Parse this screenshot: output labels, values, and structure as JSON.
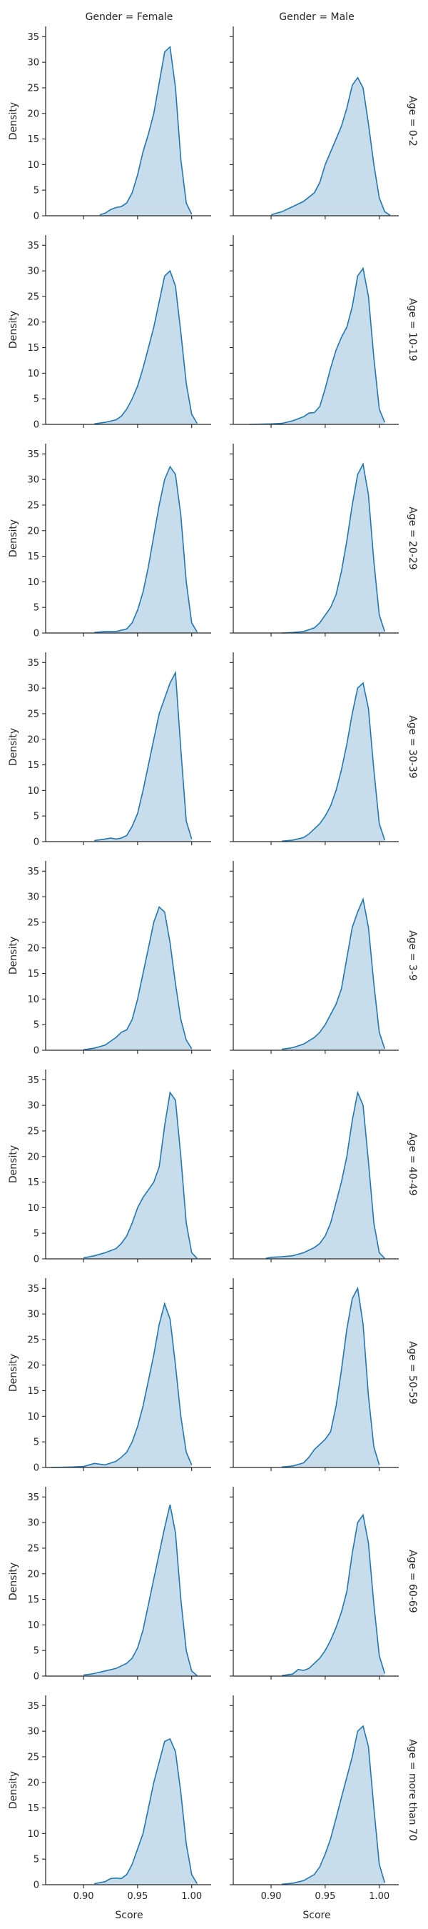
{
  "chart_data": {
    "type": "area",
    "facet_grid": {
      "col_var": "Gender",
      "row_var": "Age"
    },
    "xlabel": "Score",
    "ylabel": "Density",
    "xlim": [
      0.865,
      1.018
    ],
    "ylim": [
      0,
      37
    ],
    "xticks": [
      0.9,
      0.95,
      1.0
    ],
    "xtick_labels": [
      "0.90",
      "0.95",
      "1.00"
    ],
    "yticks": [
      0,
      5,
      10,
      15,
      20,
      25,
      30,
      35
    ],
    "ytick_labels": [
      "0",
      "5",
      "10",
      "15",
      "20",
      "25",
      "30",
      "35"
    ],
    "col_titles": [
      "Gender = Female",
      "Gender = Male"
    ],
    "row_titles": [
      "Age = 0-2",
      "Age = 10-19",
      "Age = 20-29",
      "Age = 30-39",
      "Age = 3-9",
      "Age = 40-49",
      "Age = 50-59",
      "Age = 60-69",
      "Age = more than 70"
    ],
    "panels": [
      {
        "row": 0,
        "col": 0,
        "x": [
          0.915,
          0.92,
          0.925,
          0.93,
          0.935,
          0.94,
          0.945,
          0.95,
          0.955,
          0.96,
          0.965,
          0.97,
          0.975,
          0.98,
          0.985,
          0.99,
          0.995,
          1.0
        ],
        "y": [
          0.2,
          0.5,
          1.2,
          1.6,
          1.8,
          2.5,
          4.5,
          8,
          12.5,
          16,
          20,
          26,
          32,
          33,
          25,
          11,
          2.5,
          0.3
        ]
      },
      {
        "row": 0,
        "col": 1,
        "x": [
          0.9,
          0.91,
          0.92,
          0.93,
          0.94,
          0.945,
          0.95,
          0.955,
          0.96,
          0.965,
          0.97,
          0.975,
          0.98,
          0.985,
          0.99,
          0.995,
          1.0,
          1.005,
          1.01
        ],
        "y": [
          0.2,
          0.8,
          1.8,
          2.8,
          4.5,
          6.5,
          10,
          12.5,
          15,
          17.5,
          21,
          25.5,
          27,
          25,
          18,
          10,
          3.5,
          0.8,
          0.1
        ]
      },
      {
        "row": 1,
        "col": 0,
        "x": [
          0.91,
          0.92,
          0.93,
          0.935,
          0.94,
          0.945,
          0.95,
          0.955,
          0.96,
          0.965,
          0.97,
          0.975,
          0.98,
          0.985,
          0.99,
          0.995,
          1.0,
          1.005
        ],
        "y": [
          0.1,
          0.4,
          0.9,
          1.6,
          3,
          5,
          7.5,
          11,
          15,
          19,
          24,
          29,
          30,
          27,
          18,
          8,
          2,
          0.2
        ]
      },
      {
        "row": 1,
        "col": 1,
        "x": [
          0.88,
          0.9,
          0.91,
          0.92,
          0.93,
          0.935,
          0.94,
          0.945,
          0.95,
          0.955,
          0.96,
          0.965,
          0.97,
          0.975,
          0.98,
          0.985,
          0.99,
          0.995,
          1.0,
          1.005
        ],
        "y": [
          0,
          0.1,
          0.2,
          0.7,
          1.5,
          2.2,
          2.3,
          3.5,
          7,
          11,
          14.5,
          17,
          19,
          23,
          29,
          30.5,
          25,
          13,
          3,
          0.4
        ]
      },
      {
        "row": 2,
        "col": 0,
        "x": [
          0.91,
          0.92,
          0.93,
          0.94,
          0.945,
          0.95,
          0.955,
          0.96,
          0.965,
          0.97,
          0.975,
          0.98,
          0.985,
          0.99,
          0.995,
          1.0,
          1.005
        ],
        "y": [
          0.1,
          0.3,
          0.3,
          0.8,
          2,
          4.5,
          8,
          13,
          19,
          25,
          30,
          32.5,
          31,
          23,
          10,
          2,
          0.2
        ]
      },
      {
        "row": 2,
        "col": 1,
        "x": [
          0.91,
          0.92,
          0.93,
          0.94,
          0.945,
          0.95,
          0.955,
          0.96,
          0.965,
          0.97,
          0.975,
          0.98,
          0.985,
          0.99,
          0.995,
          1.0,
          1.005
        ],
        "y": [
          0,
          0.1,
          0.3,
          1,
          2,
          3.5,
          5,
          7.5,
          12,
          18,
          25,
          31,
          33,
          27,
          14,
          3.5,
          0.3
        ]
      },
      {
        "row": 3,
        "col": 0,
        "x": [
          0.91,
          0.92,
          0.925,
          0.93,
          0.935,
          0.94,
          0.945,
          0.95,
          0.955,
          0.96,
          0.965,
          0.97,
          0.975,
          0.98,
          0.985,
          0.99,
          0.995,
          1.0
        ],
        "y": [
          0.2,
          0.5,
          0.7,
          0.5,
          0.7,
          1.2,
          3,
          5.5,
          10,
          15,
          20,
          25,
          28,
          31,
          33,
          18,
          4,
          0.5
        ]
      },
      {
        "row": 3,
        "col": 1,
        "x": [
          0.91,
          0.92,
          0.93,
          0.935,
          0.94,
          0.945,
          0.95,
          0.955,
          0.96,
          0.965,
          0.97,
          0.975,
          0.98,
          0.985,
          0.99,
          0.995,
          1.0,
          1.005
        ],
        "y": [
          0.1,
          0.3,
          0.8,
          1.5,
          2.5,
          3.5,
          5,
          7,
          10,
          14,
          19,
          25,
          30,
          31,
          26,
          14,
          3.5,
          0.3
        ]
      },
      {
        "row": 4,
        "col": 0,
        "x": [
          0.9,
          0.91,
          0.92,
          0.93,
          0.935,
          0.94,
          0.945,
          0.95,
          0.955,
          0.96,
          0.965,
          0.97,
          0.975,
          0.98,
          0.985,
          0.99,
          0.995,
          1.0
        ],
        "y": [
          0.1,
          0.4,
          1,
          2.5,
          3.5,
          4,
          6,
          10,
          15,
          20,
          25,
          28,
          27,
          21,
          13,
          6,
          2,
          0.3
        ]
      },
      {
        "row": 4,
        "col": 1,
        "x": [
          0.91,
          0.92,
          0.93,
          0.94,
          0.945,
          0.95,
          0.955,
          0.96,
          0.965,
          0.97,
          0.975,
          0.98,
          0.985,
          0.99,
          0.995,
          1.0,
          1.005
        ],
        "y": [
          0.2,
          0.5,
          1.2,
          2.5,
          3.5,
          5,
          7,
          9,
          12,
          18,
          24,
          27,
          29.5,
          24,
          13,
          3.5,
          0.3
        ]
      },
      {
        "row": 5,
        "col": 0,
        "x": [
          0.9,
          0.91,
          0.92,
          0.93,
          0.935,
          0.94,
          0.945,
          0.95,
          0.955,
          0.96,
          0.965,
          0.97,
          0.975,
          0.98,
          0.985,
          0.99,
          0.995,
          1.0,
          1.005
        ],
        "y": [
          0.2,
          0.6,
          1.2,
          2,
          3,
          4.5,
          7,
          10,
          12,
          13.5,
          15,
          18,
          26,
          32.5,
          31,
          20,
          7,
          1.2,
          0.1
        ]
      },
      {
        "row": 5,
        "col": 1,
        "x": [
          0.895,
          0.9,
          0.91,
          0.92,
          0.93,
          0.94,
          0.945,
          0.95,
          0.955,
          0.96,
          0.965,
          0.97,
          0.975,
          0.98,
          0.985,
          0.99,
          0.995,
          1.0,
          1.005
        ],
        "y": [
          0.1,
          0.3,
          0.4,
          0.6,
          1.2,
          2.2,
          3,
          4.5,
          7,
          11,
          15,
          20,
          27,
          32.5,
          30,
          19,
          7,
          1.2,
          0.1
        ]
      },
      {
        "row": 6,
        "col": 0,
        "x": [
          0.87,
          0.89,
          0.9,
          0.91,
          0.92,
          0.93,
          0.935,
          0.94,
          0.945,
          0.95,
          0.955,
          0.96,
          0.965,
          0.97,
          0.975,
          0.98,
          0.985,
          0.99,
          0.995,
          1.0
        ],
        "y": [
          0,
          0.1,
          0.2,
          0.8,
          0.5,
          1.2,
          2,
          3,
          5,
          8,
          12,
          17,
          22,
          28,
          32,
          29,
          20,
          10,
          3,
          0.5
        ]
      },
      {
        "row": 6,
        "col": 1,
        "x": [
          0.91,
          0.92,
          0.93,
          0.935,
          0.94,
          0.945,
          0.95,
          0.955,
          0.96,
          0.965,
          0.97,
          0.975,
          0.98,
          0.985,
          0.99,
          0.995,
          1.0
        ],
        "y": [
          0.1,
          0.3,
          0.9,
          2,
          3.5,
          4.5,
          5.5,
          7,
          12,
          19,
          27,
          33,
          35,
          28,
          14,
          4,
          0.5
        ]
      },
      {
        "row": 7,
        "col": 0,
        "x": [
          0.9,
          0.91,
          0.92,
          0.93,
          0.94,
          0.945,
          0.95,
          0.955,
          0.96,
          0.965,
          0.97,
          0.975,
          0.98,
          0.985,
          0.99,
          0.995,
          1.0,
          1.005
        ],
        "y": [
          0.2,
          0.5,
          1,
          1.5,
          2.5,
          3.5,
          5.5,
          9,
          14,
          19,
          24,
          29,
          33.5,
          28,
          15,
          5,
          1,
          0.1
        ]
      },
      {
        "row": 7,
        "col": 1,
        "x": [
          0.91,
          0.92,
          0.925,
          0.93,
          0.935,
          0.94,
          0.945,
          0.95,
          0.955,
          0.96,
          0.965,
          0.97,
          0.975,
          0.98,
          0.985,
          0.99,
          0.995,
          1.0,
          1.005
        ],
        "y": [
          0.1,
          0.4,
          1.3,
          1.1,
          1.5,
          2.5,
          3.5,
          5,
          7,
          9.5,
          12.5,
          16.5,
          24,
          30,
          31.5,
          26,
          14,
          4,
          0.5
        ]
      },
      {
        "row": 8,
        "col": 0,
        "x": [
          0.91,
          0.92,
          0.925,
          0.93,
          0.935,
          0.94,
          0.945,
          0.95,
          0.955,
          0.96,
          0.965,
          0.97,
          0.975,
          0.98,
          0.985,
          0.99,
          0.995,
          1.0,
          1.005
        ],
        "y": [
          0.2,
          0.6,
          1.2,
          1.3,
          1.2,
          2,
          4,
          7,
          10,
          15,
          20,
          24,
          28,
          28.5,
          26,
          18,
          8,
          2,
          0.2
        ]
      },
      {
        "row": 8,
        "col": 1,
        "x": [
          0.91,
          0.92,
          0.93,
          0.94,
          0.945,
          0.95,
          0.955,
          0.96,
          0.965,
          0.97,
          0.975,
          0.98,
          0.985,
          0.99,
          0.995,
          1.0,
          1.005
        ],
        "y": [
          0.1,
          0.3,
          0.8,
          2,
          3.5,
          6,
          9,
          13,
          17,
          21,
          25,
          30,
          31,
          27,
          15,
          4,
          0.4
        ]
      }
    ]
  }
}
